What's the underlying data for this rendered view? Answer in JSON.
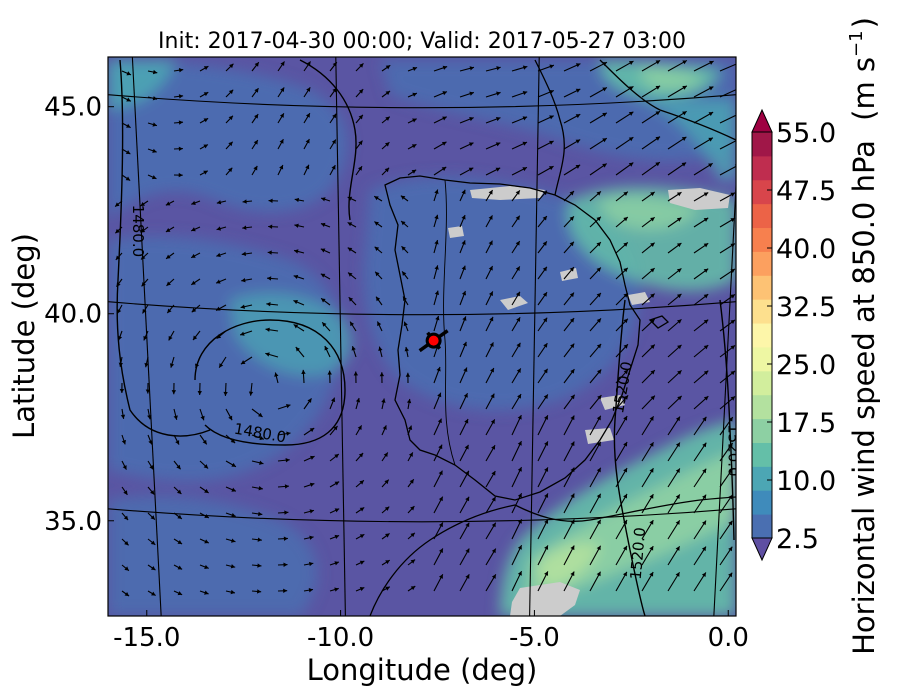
{
  "map": {
    "title": "Init: 2017-04-30 00:00; Valid: 2017-05-27 03:00",
    "xlabel": "Longitude (deg)",
    "ylabel": "Latitude (deg)",
    "x_ticks": [
      {
        "value": -15.0,
        "label": "-15.0"
      },
      {
        "value": -10.0,
        "label": "-10.0"
      },
      {
        "value": -5.0,
        "label": "-5.0"
      },
      {
        "value": 0.0,
        "label": "0.0"
      }
    ],
    "y_ticks": [
      {
        "value": 45.0,
        "label": "45.0"
      },
      {
        "value": 40.0,
        "label": "40.0"
      },
      {
        "value": 35.0,
        "label": "35.0"
      }
    ],
    "lon_range": [
      -16.0,
      0.2
    ],
    "lat_range": [
      32.7,
      46.2
    ],
    "region": "Iberian Peninsula",
    "fill_variable": "horizontal wind speed (shaded)",
    "vectors": "wind arrows",
    "contour_labels": [
      {
        "text": "1480.0",
        "lon": -12.1,
        "lat": 37.0,
        "rotate": 10
      },
      {
        "text": "1480.0",
        "lon": -15.35,
        "lat": 42.0,
        "rotate": 90
      },
      {
        "text": "1520.0",
        "lon": -2.6,
        "lat": 38.2,
        "rotate": -80
      },
      {
        "text": "1520.0",
        "lon": -2.2,
        "lat": 34.2,
        "rotate": -85
      },
      {
        "text": "1520.0",
        "lon": 0.0,
        "lat": 36.7,
        "rotate": 90
      }
    ],
    "marker": {
      "lon": -7.6,
      "lat": 39.35,
      "fill": "#ff0000",
      "edge": "#000000"
    },
    "missing_color": "#cccccc"
  },
  "colorbar": {
    "label": "Horizontal wind speed at 850.0 hPa",
    "units_label": "(m s",
    "units_exp": "−1",
    "units_close": ")",
    "vmin": 2.5,
    "vmax": 55.0,
    "ticks": [
      {
        "value": 2.5,
        "label": "2.5"
      },
      {
        "value": 10.0,
        "label": "10.0"
      },
      {
        "value": 17.5,
        "label": "17.5"
      },
      {
        "value": 25.0,
        "label": "25.0"
      },
      {
        "value": 32.5,
        "label": "32.5"
      },
      {
        "value": 40.0,
        "label": "40.0"
      },
      {
        "value": 47.5,
        "label": "47.5"
      },
      {
        "value": 55.0,
        "label": "55.0"
      }
    ],
    "colors": [
      "#4a6fb1",
      "#3f8bbb",
      "#4ca6b4",
      "#64bfa8",
      "#8dd0a3",
      "#b3e19f",
      "#d2ee9d",
      "#eef7a3",
      "#fdf6a9",
      "#fde08e",
      "#fdc274",
      "#fca05f",
      "#f7804e",
      "#ec6347",
      "#d8454b",
      "#bf2d4f",
      "#a01748"
    ],
    "extend_low_color": "#5e4fa2",
    "extend_high_color": "#9e0142"
  }
}
